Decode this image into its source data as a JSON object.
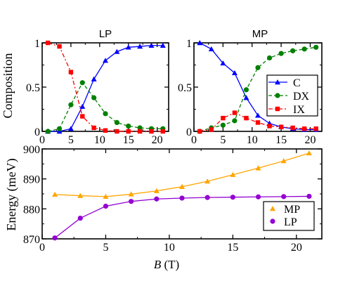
{
  "colors": {
    "C": "#0000ff",
    "DX": "#008000",
    "IX": "#ff0000",
    "MP": "#ffa500",
    "LP": "#9400d3",
    "axis": "#000000",
    "background": "#ffffff"
  },
  "chart_data": [
    {
      "type": "line",
      "title": "LP",
      "xlabel": "",
      "ylabel": "Composition",
      "xlim": [
        0,
        22
      ],
      "ylim": [
        0,
        1
      ],
      "xticks": [
        0,
        5,
        10,
        15,
        20
      ],
      "yticks": [
        0,
        0.5,
        1
      ],
      "ytick_labels": [
        "0",
        "0.5",
        "1"
      ],
      "x": [
        1,
        3,
        5,
        7,
        9,
        11,
        13,
        15,
        17,
        19,
        21
      ],
      "series": [
        {
          "key": "C",
          "values": [
            0.0,
            0.0,
            0.03,
            0.28,
            0.59,
            0.8,
            0.9,
            0.95,
            0.96,
            0.97,
            0.97
          ],
          "marker": "triangle",
          "dash": "solid"
        },
        {
          "key": "DX",
          "values": [
            0.0,
            0.03,
            0.3,
            0.55,
            0.38,
            0.2,
            0.1,
            0.06,
            0.04,
            0.03,
            0.03
          ],
          "marker": "circle",
          "dash": "dashed"
        },
        {
          "key": "IX",
          "values": [
            1.0,
            0.96,
            0.67,
            0.17,
            0.04,
            0.01,
            0.0,
            0.0,
            0.0,
            0.0,
            0.0
          ],
          "marker": "square",
          "dash": "dashdot"
        }
      ]
    },
    {
      "type": "line",
      "title": "MP",
      "xlabel": "",
      "ylabel": "",
      "xlim": [
        0,
        22
      ],
      "ylim": [
        0,
        1
      ],
      "xticks": [
        0,
        5,
        10,
        15,
        20
      ],
      "yticks": [
        0,
        0.5,
        1
      ],
      "ytick_labels": [
        "0",
        "0.5",
        "1"
      ],
      "x": [
        1,
        3,
        5,
        7,
        9,
        11,
        13,
        15,
        17,
        19,
        21
      ],
      "series": [
        {
          "key": "C",
          "name": "C",
          "values": [
            1.0,
            0.93,
            0.77,
            0.66,
            0.38,
            0.18,
            0.09,
            0.05,
            0.03,
            0.02,
            0.02
          ],
          "marker": "triangle",
          "dash": "solid"
        },
        {
          "key": "DX",
          "name": "DX",
          "values": [
            0.0,
            0.04,
            0.07,
            0.12,
            0.47,
            0.72,
            0.83,
            0.88,
            0.91,
            0.93,
            0.95
          ],
          "marker": "circle",
          "dash": "dashed"
        },
        {
          "key": "IX",
          "name": "IX",
          "values": [
            0.0,
            0.02,
            0.15,
            0.21,
            0.15,
            0.1,
            0.06,
            0.05,
            0.04,
            0.03,
            0.03
          ],
          "marker": "square",
          "dash": "dashdot"
        }
      ],
      "legend": "right"
    },
    {
      "type": "line",
      "title": "",
      "xlabel_var": "B",
      "xlabel_unit": " (T)",
      "ylabel": "Energy (meV)",
      "xlim": [
        0,
        22
      ],
      "ylim": [
        870,
        900
      ],
      "xticks": [
        0,
        5,
        10,
        15,
        20
      ],
      "yticks": [
        870,
        880,
        890,
        900
      ],
      "x": [
        1,
        3,
        5,
        7,
        9,
        11,
        13,
        15,
        17,
        19,
        21
      ],
      "series": [
        {
          "key": "MP",
          "name": "MP",
          "values": [
            884.8,
            884.4,
            884.1,
            884.9,
            886.0,
            887.4,
            889.2,
            891.4,
            893.6,
            896.0,
            898.6
          ],
          "marker": "triangle",
          "dash": "solid"
        },
        {
          "key": "LP",
          "name": "LP",
          "values": [
            870.3,
            876.9,
            880.9,
            882.5,
            883.3,
            883.6,
            883.8,
            883.9,
            884.0,
            884.1,
            884.2
          ],
          "marker": "circle",
          "dash": "solid"
        }
      ],
      "legend": "bottom-right"
    }
  ]
}
